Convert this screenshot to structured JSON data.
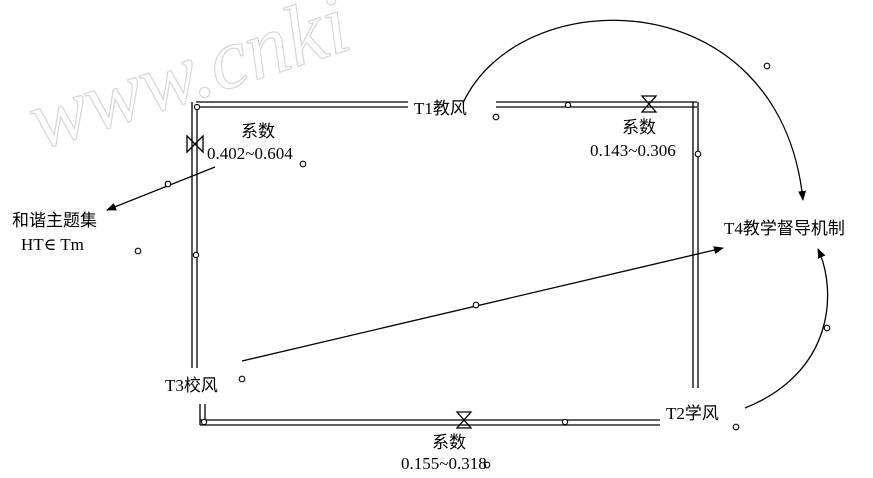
{
  "watermark": "www.cnki",
  "nodes": {
    "t1": "T1教风",
    "t2": "T2学风",
    "t3": "T3校风",
    "t4": "T4教学督导机制"
  },
  "coefficients": {
    "left": {
      "label": "系数",
      "range": "0.402~0.604"
    },
    "top_right": {
      "label": "系数",
      "range": "0.143~0.306"
    },
    "bottom": {
      "label": "系数",
      "range": "0.155~0.318"
    }
  },
  "harmony_set": {
    "line1": "和谐主题集",
    "line2": "HT∈ Tm"
  },
  "colors": {
    "ink": "#000000",
    "watermark": "#d6d6d6",
    "background": "#ffffff"
  }
}
